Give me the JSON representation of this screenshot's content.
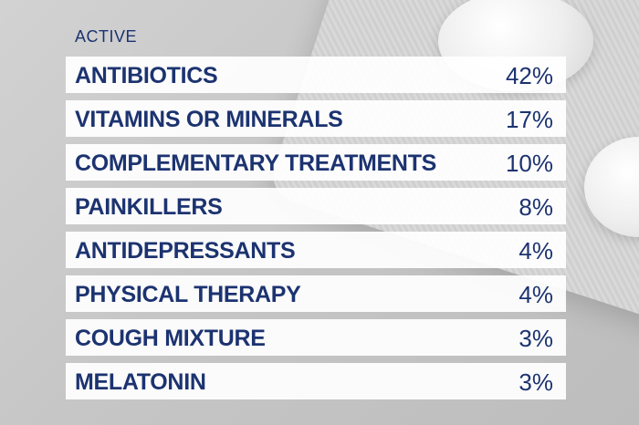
{
  "header": {
    "title": "ACTIVE"
  },
  "table": {
    "rows": [
      [
        "ANTIBIOTICS",
        "42%"
      ],
      [
        "VITAMINS OR MINERALS",
        "17%"
      ],
      [
        "COMPLEMENTARY TREATMENTS",
        "10%"
      ],
      [
        "PAINKILLERS",
        "8%"
      ],
      [
        "ANTIDEPRESSANTS",
        "4%"
      ],
      [
        "PHYSICAL THERAPY",
        "4%"
      ],
      [
        "COUGH MIXTURE",
        "3%"
      ],
      [
        "MELATONIN",
        "3%"
      ]
    ]
  }
}
